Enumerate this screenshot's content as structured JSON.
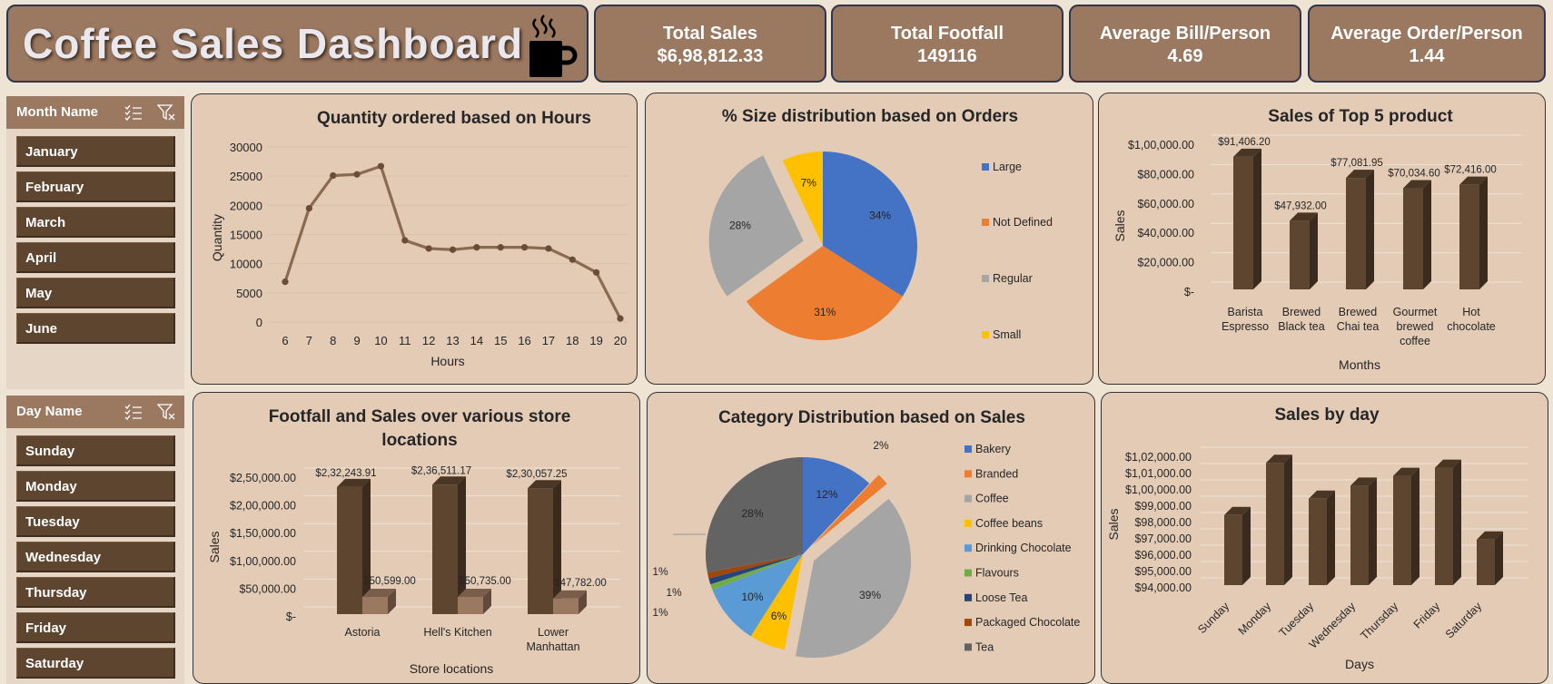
{
  "header": {
    "title": "Coffee Sales Dashboard",
    "cup_icon": "coffee-cup-icon"
  },
  "kpis": [
    {
      "label": "Total Sales",
      "value": "$6,98,812.33"
    },
    {
      "label": "Total Footfall",
      "value": "149116"
    },
    {
      "label": "Average Bill/Person",
      "value": "4.69"
    },
    {
      "label": "Average Order/Person",
      "value": "1.44"
    }
  ],
  "slicers": {
    "month": {
      "title": "Month Name",
      "items": [
        "January",
        "February",
        "March",
        "April",
        "May",
        "June"
      ]
    },
    "day": {
      "title": "Day Name",
      "items": [
        "Sunday",
        "Monday",
        "Tuesday",
        "Wednesday",
        "Thursday",
        "Friday",
        "Saturday"
      ]
    }
  },
  "colors": {
    "brown_dark": "#5e4530",
    "brown_light": "#9b7860",
    "panel_bg": "#e3cbb6",
    "line": "#8b6a52",
    "blue": "#4472c4",
    "orange": "#ed7d31",
    "gray": "#a5a5a5",
    "gold": "#ffc000",
    "lightblue": "#5b9bd5",
    "green": "#70ad47",
    "navy": "#264478",
    "rust": "#9e480e",
    "darkgray": "#636363"
  },
  "chart_data": [
    {
      "type": "line",
      "title": "Quantity ordered based on Hours",
      "xlabel": "Hours",
      "ylabel": "Quantity",
      "x": [
        6,
        7,
        8,
        9,
        10,
        11,
        12,
        13,
        14,
        15,
        16,
        17,
        18,
        19,
        20
      ],
      "values": [
        6900,
        19500,
        25100,
        25300,
        26700,
        14000,
        12600,
        12400,
        12800,
        12800,
        12800,
        12600,
        10700,
        8500,
        600
      ],
      "yticks": [
        "0",
        "5000",
        "10000",
        "15000",
        "20000",
        "25000",
        "30000"
      ],
      "ylim": [
        0,
        30000
      ]
    },
    {
      "type": "pie",
      "title": "% Size distribution based on Orders",
      "categories": [
        "Large",
        "Not Defined",
        "Regular",
        "Small"
      ],
      "values": [
        34,
        31,
        28,
        7
      ],
      "labels": [
        "34%",
        "31%",
        "28%",
        "7%"
      ]
    },
    {
      "type": "bar",
      "title": "Sales of Top 5 product",
      "xlabel": "Months",
      "ylabel": "Sales",
      "categories": [
        "Barista Espresso",
        "Brewed Black tea",
        "Brewed Chai tea",
        "Gourmet brewed coffee",
        "Hot chocolate"
      ],
      "values": [
        91406.2,
        47932.0,
        77081.95,
        70034.6,
        72416.0
      ],
      "data_labels": [
        "$91,406.20",
        "$47,932.00",
        "$77,081.95",
        "$70,034.60",
        "$72,416.00"
      ],
      "yticks": [
        "$-",
        "$20,000.00",
        "$40,000.00",
        "$60,000.00",
        "$80,000.00",
        "$1,00,000.00"
      ],
      "ylim": [
        0,
        100000
      ]
    },
    {
      "type": "bar",
      "title": "Footfall and Sales over various store locations",
      "title_lines": [
        "Footfall and Sales over various store",
        "locations"
      ],
      "xlabel": "Store locations",
      "ylabel": "Sales",
      "categories": [
        "Astoria",
        "Hell's Kitchen",
        "Lower Manhattan"
      ],
      "category_lines": [
        [
          "Astoria"
        ],
        [
          "Hell's Kitchen"
        ],
        [
          "Lower",
          "Manhattan"
        ]
      ],
      "series": [
        {
          "name": "Sales",
          "values": [
            232243.91,
            236511.17,
            230057.25
          ],
          "labels": [
            "$2,32,243.91",
            "$2,36,511.17",
            "$2,30,057.25"
          ]
        },
        {
          "name": "Footfall",
          "values": [
            50599.0,
            50735.0,
            47782.0
          ],
          "labels": [
            "$50,599.00",
            "$50,735.00",
            "$47,782.00"
          ]
        }
      ],
      "yticks": [
        "$-",
        "$50,000.00",
        "$1,00,000.00",
        "$1,50,000.00",
        "$2,00,000.00",
        "$2,50,000.00"
      ],
      "ylim": [
        0,
        250000
      ]
    },
    {
      "type": "pie",
      "title": "Category Distribution based on Sales",
      "categories": [
        "Bakery",
        "Branded",
        "Coffee",
        "Coffee beans",
        "Drinking Chocolate",
        "Flavours",
        "Loose Tea",
        "Packaged Chocolate",
        "Tea"
      ],
      "values": [
        12,
        2,
        39,
        6,
        10,
        1,
        1,
        1,
        28
      ],
      "labels": [
        "12%",
        "2%",
        "39%",
        "6%",
        "10%",
        "1%",
        "1%",
        "1%",
        "28%"
      ]
    },
    {
      "type": "bar",
      "title": "Sales by day",
      "xlabel": "Days",
      "ylabel": "Sales",
      "categories": [
        "Sunday",
        "Monday",
        "Tuesday",
        "Wednesday",
        "Thursday",
        "Friday",
        "Saturday"
      ],
      "values": [
        98400,
        101600,
        99400,
        100200,
        100800,
        101300,
        96900
      ],
      "yticks": [
        "$94,000.00",
        "$95,000.00",
        "$96,000.00",
        "$97,000.00",
        "$98,000.00",
        "$99,000.00",
        "$1,00,000.00",
        "$1,01,000.00",
        "$1,02,000.00"
      ],
      "ylim": [
        94000,
        102000
      ]
    }
  ]
}
